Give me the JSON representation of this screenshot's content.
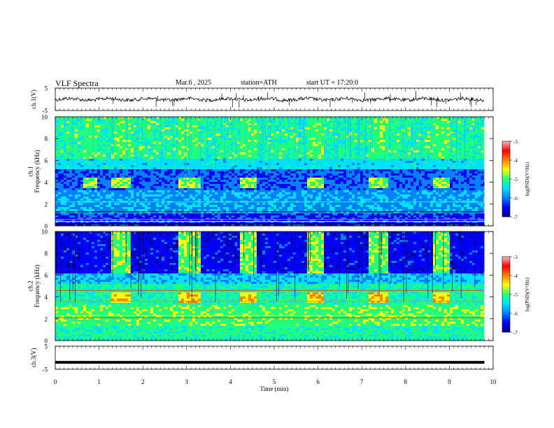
{
  "header": {
    "title": "VLF Spectra",
    "date": "Mar.6 , 2025",
    "station": "station=ATH",
    "start_ut": "start UT = 17:20:0"
  },
  "chart_data": [
    {
      "type": "line",
      "panel": "ch1-waveform",
      "ylabel": "ch.1(V)",
      "ylim": [
        -5,
        5
      ],
      "y_ticks": [
        "5",
        "-5"
      ],
      "xlim": [
        0,
        10
      ],
      "trace_level": 0,
      "trace_end": 9.8,
      "colors": {
        "trace": "#000000"
      }
    },
    {
      "type": "heatmap",
      "panel": "ch1-spectrogram",
      "ylabel": "ch.1\nFrequency (kHz)",
      "ylim": [
        0,
        10
      ],
      "y_ticks": [
        "0",
        "2",
        "4",
        "6",
        "8",
        "10"
      ],
      "xlim": [
        0,
        10
      ],
      "data_end": 9.8,
      "colorbar": {
        "label": "log(PSD)(V²/Hz)",
        "range": [
          -7,
          -3
        ],
        "ticks": [
          "-3",
          "-4",
          "-5",
          "-6",
          "-7"
        ]
      },
      "bursts": [
        [
          0.6,
          0.9
        ],
        [
          1.25,
          1.7
        ],
        [
          2.75,
          3.3
        ],
        [
          4.2,
          4.6
        ],
        [
          5.7,
          6.1
        ],
        [
          7.15,
          7.55
        ],
        [
          8.6,
          9.0
        ]
      ]
    },
    {
      "type": "heatmap",
      "panel": "ch2-spectrogram",
      "ylabel": "ch.2\nFrequency (kHz)",
      "ylim": [
        0,
        10
      ],
      "y_ticks": [
        "0",
        "2",
        "4",
        "6",
        "8",
        "10"
      ],
      "xlim": [
        0,
        10
      ],
      "data_end": 9.8,
      "colorbar": {
        "label": "log(PSD)(V²/Hz)",
        "range": [
          -7,
          -3
        ],
        "ticks": [
          "-3",
          "-4",
          "-5",
          "-6",
          "-7"
        ]
      },
      "bursts": [
        [
          1.25,
          1.7
        ],
        [
          2.75,
          3.3
        ],
        [
          4.2,
          4.6
        ],
        [
          5.7,
          6.1
        ],
        [
          7.15,
          7.55
        ],
        [
          8.6,
          9.0
        ]
      ]
    },
    {
      "type": "line",
      "panel": "ch3-waveform",
      "ylabel": "ch.3(V)",
      "ylim": [
        -5,
        5
      ],
      "y_ticks": [
        "5",
        "-5"
      ],
      "xlim": [
        0,
        10
      ],
      "trace_level": -2,
      "trace_end": 9.8,
      "xlabel": "Time (min)",
      "x_ticks": [
        "0",
        "1",
        "2",
        "3",
        "4",
        "5",
        "6",
        "7",
        "8",
        "9",
        "10"
      ]
    }
  ],
  "colormap": [
    "#00008b",
    "#0000ff",
    "#0080ff",
    "#00e0ff",
    "#20ff80",
    "#ffff00",
    "#ff8000",
    "#ff0000",
    "#ffc0c0"
  ]
}
